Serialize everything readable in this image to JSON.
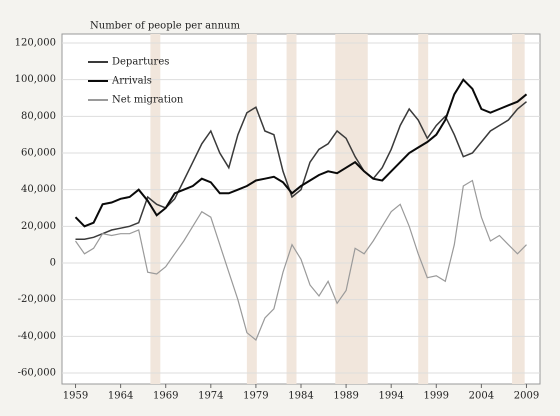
{
  "chart_data": {
    "type": "line",
    "y_label": "Number of people per annum",
    "x": [
      1959,
      1960,
      1961,
      1962,
      1963,
      1964,
      1965,
      1966,
      1967,
      1968,
      1969,
      1970,
      1971,
      1972,
      1973,
      1974,
      1975,
      1976,
      1977,
      1978,
      1979,
      1980,
      1981,
      1982,
      1983,
      1984,
      1985,
      1986,
      1987,
      1988,
      1989,
      1990,
      1991,
      1992,
      1993,
      1994,
      1995,
      1996,
      1997,
      1998,
      1999,
      2000,
      2001,
      2002,
      2003,
      2004,
      2005,
      2006,
      2007,
      2008,
      2009
    ],
    "series": [
      {
        "name": "Departures",
        "color": "#3a3a3a",
        "values": [
          13000,
          13000,
          14000,
          16000,
          18000,
          19000,
          20000,
          22000,
          36000,
          32000,
          30000,
          35000,
          45000,
          55000,
          65000,
          72000,
          60000,
          52000,
          70000,
          82000,
          85000,
          72000,
          70000,
          50000,
          36000,
          40000,
          55000,
          62000,
          65000,
          72000,
          68000,
          58000,
          50000,
          46000,
          52000,
          62000,
          75000,
          84000,
          78000,
          68000,
          75000,
          80000,
          70000,
          58000,
          60000,
          66000,
          72000,
          75000,
          78000,
          84000,
          88000
        ]
      },
      {
        "name": "Arrivals",
        "color": "#0a0a0a",
        "values": [
          25000,
          20000,
          22000,
          32000,
          33000,
          35000,
          36000,
          40000,
          34000,
          26000,
          30000,
          38000,
          40000,
          42000,
          46000,
          44000,
          38000,
          38000,
          40000,
          42000,
          45000,
          46000,
          47000,
          44000,
          38000,
          42000,
          45000,
          48000,
          50000,
          49000,
          52000,
          55000,
          50000,
          46000,
          45000,
          50000,
          55000,
          60000,
          63000,
          66000,
          70000,
          78000,
          92000,
          100000,
          95000,
          84000,
          82000,
          84000,
          86000,
          88000,
          92000
        ]
      },
      {
        "name": "Net migration",
        "color": "#9a9a9a",
        "values": [
          12000,
          5000,
          8000,
          16000,
          15000,
          16000,
          16000,
          18000,
          -5000,
          -6000,
          -2000,
          5000,
          12000,
          20000,
          28000,
          25000,
          10000,
          -5000,
          -20000,
          -38000,
          -42000,
          -30000,
          -25000,
          -5000,
          10000,
          2000,
          -12000,
          -18000,
          -10000,
          -22000,
          -15000,
          8000,
          5000,
          12000,
          20000,
          28000,
          32000,
          20000,
          5000,
          -8000,
          -7000,
          -10000,
          10000,
          42000,
          45000,
          25000,
          12000,
          15000,
          10000,
          5000,
          10000
        ]
      }
    ],
    "shaded_periods": [
      [
        1967.3,
        1968.4
      ],
      [
        1978,
        1979.1
      ],
      [
        1982.4,
        1983.5
      ],
      [
        1987.8,
        1991.4
      ],
      [
        1997,
        1998.1
      ],
      [
        2007.4,
        2008.8
      ]
    ],
    "shade_color": "#f1e6dc",
    "xlim": [
      1957.5,
      2010.5
    ],
    "xticks": [
      1959,
      1964,
      1969,
      1974,
      1979,
      1984,
      1989,
      1994,
      1999,
      2004,
      2009
    ],
    "ylim": [
      -60000,
      120000
    ],
    "yticks": [
      {
        "value": -60000,
        "label": "-60,000"
      },
      {
        "value": -40000,
        "label": "-40,000"
      },
      {
        "value": -20000,
        "label": "-20,000"
      },
      0,
      {
        "value": 20000,
        "label": "20,000"
      },
      {
        "value": 40000,
        "label": "40,000"
      },
      {
        "value": 60000,
        "label": "60,000"
      },
      {
        "value": 80000,
        "label": "80,000"
      },
      {
        "value": 100000,
        "label": "100,000"
      },
      {
        "value": 120000,
        "label": "120,000"
      }
    ],
    "grid": true
  }
}
